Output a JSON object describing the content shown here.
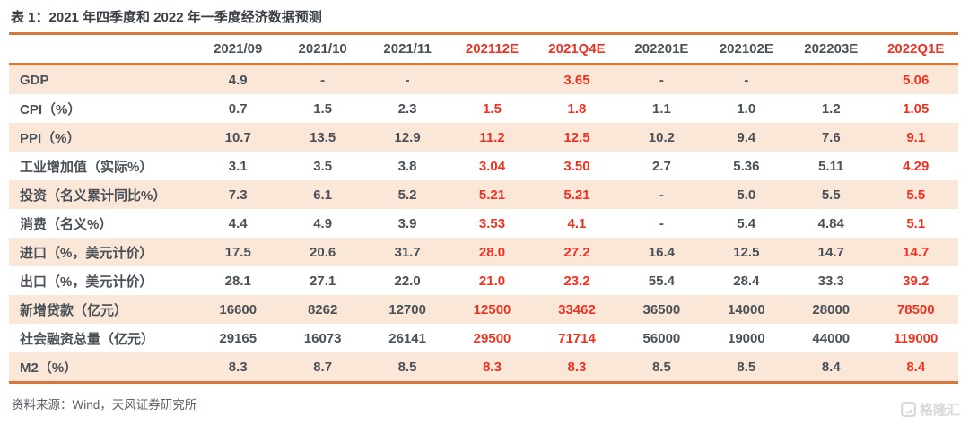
{
  "title": "表 1：2021 年四季度和 2022 年一季度经济数据预测",
  "source_note": "资料来源：Wind，天风证券研究所",
  "watermark": {
    "brand": "格隆汇"
  },
  "colors": {
    "accent_rule": "#D4793B",
    "row_alt_bg": "#FBE7D8",
    "red": "#EA3323",
    "text_dark": "#4A5058",
    "title_text": "#3A3F46",
    "source_text": "#5A5F66",
    "watermark_gray": "#D8D8D8"
  },
  "chart_data": {
    "type": "table",
    "columns": [
      "",
      "2021/09",
      "2021/10",
      "2021/11",
      "202112E",
      "2021Q4E",
      "202201E",
      "202102E",
      "202203E",
      "2022Q1E"
    ],
    "red_columns": [
      4,
      5,
      9
    ],
    "rows": [
      {
        "label": "GDP",
        "values": [
          "4.9",
          "-",
          "-",
          "",
          "3.65",
          "-",
          "-",
          "",
          "5.06"
        ]
      },
      {
        "label": "CPI（%）",
        "values": [
          "0.7",
          "1.5",
          "2.3",
          "1.5",
          "1.8",
          "1.1",
          "1.0",
          "1.2",
          "1.05"
        ]
      },
      {
        "label": "PPI（%）",
        "values": [
          "10.7",
          "13.5",
          "12.9",
          "11.2",
          "12.5",
          "10.2",
          "9.4",
          "7.6",
          "9.1"
        ]
      },
      {
        "label": "工业增加值（实际%）",
        "values": [
          "3.1",
          "3.5",
          "3.8",
          "3.04",
          "3.50",
          "2.7",
          "5.36",
          "5.11",
          "4.29"
        ]
      },
      {
        "label": "投资（名义累计同比%）",
        "values": [
          "7.3",
          "6.1",
          "5.2",
          "5.21",
          "5.21",
          "-",
          "5.0",
          "5.5",
          "5.5"
        ]
      },
      {
        "label": "消费（名义%）",
        "values": [
          "4.4",
          "4.9",
          "3.9",
          "3.53",
          "4.1",
          "-",
          "5.4",
          "4.84",
          "5.1"
        ]
      },
      {
        "label": "进口（%，美元计价）",
        "values": [
          "17.5",
          "20.6",
          "31.7",
          "28.0",
          "27.2",
          "16.4",
          "12.5",
          "14.7",
          "14.7"
        ]
      },
      {
        "label": "出口（%，美元计价）",
        "values": [
          "28.1",
          "27.1",
          "22.0",
          "21.0",
          "23.2",
          "55.4",
          "28.4",
          "33.3",
          "39.2"
        ]
      },
      {
        "label": "新增贷款（亿元）",
        "values": [
          "16600",
          "8262",
          "12700",
          "12500",
          "33462",
          "36500",
          "14000",
          "28000",
          "78500"
        ]
      },
      {
        "label": "社会融资总量（亿元）",
        "values": [
          "29165",
          "16073",
          "26141",
          "29500",
          "71714",
          "56000",
          "19000",
          "44000",
          "119000"
        ]
      },
      {
        "label": "M2（%）",
        "values": [
          "8.3",
          "8.7",
          "8.5",
          "8.3",
          "8.3",
          "8.5",
          "8.5",
          "8.4",
          "8.4"
        ]
      }
    ]
  }
}
